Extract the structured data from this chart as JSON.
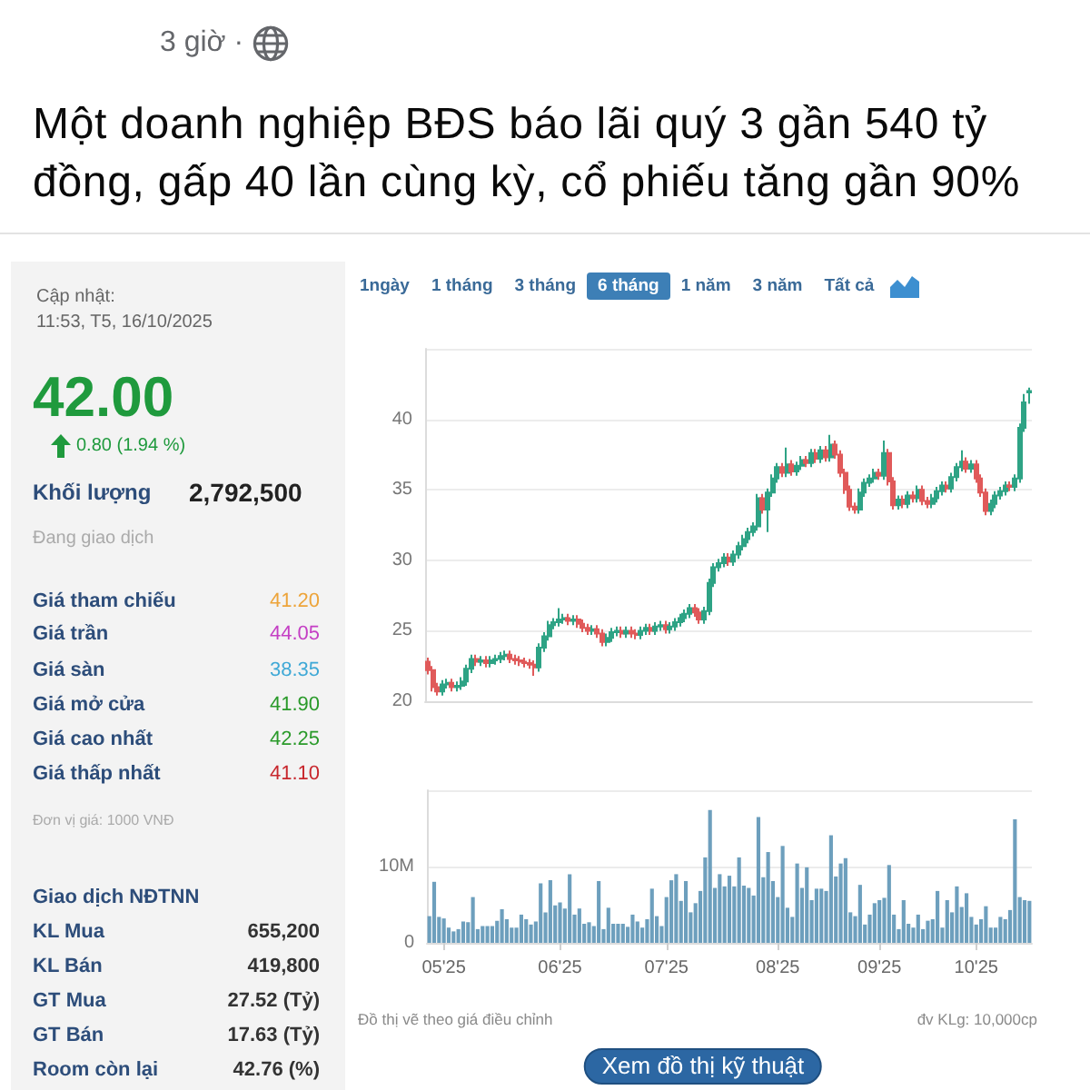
{
  "chart_data": [
    {
      "type": "other",
      "title": "Một doanh nghiệp BĐS báo lãi quý 3 gần 540 tỷ đồng, gấp 40 lần cùng kỳ, cổ phiếu tăng gần 90%",
      "annotations": [
        "3 giờ ·"
      ]
    },
    {
      "type": "other",
      "annotations": [
        "Cập nhật:",
        "11:53, T5, 16/10/2025",
        "42.00",
        "0.80 (1.94 %)",
        "Khối lượng",
        "2,792,500",
        "Đang giao dịch",
        "Giá tham chiếu",
        "41.20",
        "Giá trần",
        "44.05",
        "Giá sàn",
        "38.35",
        "Giá mở cửa",
        "41.90",
        "Giá cao nhất",
        "42.25",
        "Giá thấp nhất",
        "41.10",
        "Đơn vị giá: 1000 VNĐ",
        "Giao dịch NĐTNN",
        "KL Mua",
        "655,200",
        "KL Bán",
        "419,800",
        "GT Mua",
        "27.52 (Tỷ)",
        "GT Bán",
        "17.63 (Tỷ)",
        "Room còn lại",
        "42.76 (%)"
      ]
    },
    {
      "type": "candlestick",
      "annotations": [
        "1ngày",
        "1 tháng",
        "3 tháng",
        "6 tháng",
        "1 năm",
        "3 năm",
        "Tất cả"
      ],
      "categories": [
        null,
        null,
        null,
        null,
        null,
        null,
        null,
        null,
        null,
        null,
        null,
        null,
        null,
        null,
        null,
        null,
        null,
        null,
        null,
        null,
        null,
        null,
        null,
        null,
        null,
        null,
        null,
        null,
        null,
        null,
        null,
        null,
        null,
        null,
        null,
        null,
        null,
        null,
        null,
        null,
        null,
        null,
        null,
        null,
        null,
        null,
        null,
        null,
        null,
        null,
        null,
        null,
        null,
        null,
        null,
        null,
        null,
        null,
        null,
        null,
        null,
        null,
        null,
        null,
        null,
        null,
        null,
        null,
        null,
        null,
        null,
        null,
        null,
        null,
        null,
        null,
        null,
        null,
        null,
        null,
        null,
        null,
        null,
        null,
        null,
        null,
        null,
        null,
        null,
        null,
        null,
        null,
        null,
        null,
        null,
        null,
        null,
        null,
        null,
        null,
        null,
        null,
        null,
        null,
        null,
        null,
        null,
        null,
        null,
        null,
        null,
        null,
        null,
        null,
        null,
        null,
        null,
        null,
        null,
        null,
        null,
        null,
        null,
        null,
        null
      ],
      "ohlc": [
        [
          22.8,
          23.1,
          21.9,
          22.2
        ],
        [
          22.2,
          22.5,
          20.7,
          21.0
        ],
        [
          21.0,
          21.3,
          20.4,
          20.7
        ],
        [
          20.7,
          21.5,
          20.4,
          21.2
        ],
        [
          21.2,
          21.6,
          20.9,
          21.3
        ],
        [
          21.3,
          21.6,
          20.7,
          21.0
        ],
        [
          21.0,
          21.4,
          20.7,
          21.1
        ],
        [
          21.1,
          21.7,
          20.8,
          21.4
        ],
        [
          21.4,
          22.6,
          21.1,
          22.3
        ],
        [
          22.3,
          23.3,
          22.0,
          23.0
        ],
        [
          23.0,
          23.3,
          22.5,
          22.8
        ],
        [
          22.8,
          23.2,
          22.5,
          22.9
        ],
        [
          22.9,
          23.2,
          22.4,
          22.7
        ],
        [
          22.7,
          23.2,
          22.4,
          22.9
        ],
        [
          22.9,
          23.3,
          22.6,
          23.0
        ],
        [
          23.0,
          23.5,
          22.7,
          23.2
        ],
        [
          23.2,
          23.6,
          22.9,
          23.3
        ],
        [
          23.3,
          23.6,
          22.7,
          23.0
        ],
        [
          23.0,
          23.3,
          22.6,
          22.9
        ],
        [
          22.9,
          23.2,
          22.5,
          22.8
        ],
        [
          22.8,
          23.1,
          22.4,
          22.7
        ],
        [
          22.7,
          23.0,
          22.3,
          22.6
        ],
        [
          22.6,
          22.9,
          21.8,
          22.4
        ],
        [
          22.4,
          24.1,
          22.1,
          23.8
        ],
        [
          23.8,
          24.9,
          23.5,
          24.6
        ],
        [
          24.6,
          25.7,
          24.3,
          25.4
        ],
        [
          25.4,
          25.9,
          25.1,
          25.6
        ],
        [
          25.6,
          26.6,
          25.3,
          25.8
        ],
        [
          25.8,
          26.2,
          25.5,
          25.9
        ],
        [
          25.9,
          26.2,
          25.4,
          25.7
        ],
        [
          25.7,
          26.1,
          25.4,
          25.8
        ],
        [
          25.8,
          26.1,
          25.2,
          25.5
        ],
        [
          25.5,
          25.8,
          24.9,
          25.2
        ],
        [
          25.2,
          25.5,
          24.7,
          25.0
        ],
        [
          25.0,
          25.4,
          24.7,
          25.1
        ],
        [
          25.1,
          25.4,
          24.5,
          24.8
        ],
        [
          24.8,
          25.1,
          23.9,
          24.2
        ],
        [
          24.2,
          24.8,
          23.9,
          24.5
        ],
        [
          24.5,
          25.2,
          24.2,
          24.9
        ],
        [
          24.9,
          25.3,
          24.6,
          25.0
        ],
        [
          25.0,
          25.3,
          24.5,
          24.8
        ],
        [
          24.8,
          25.3,
          24.5,
          25.0
        ],
        [
          25.0,
          25.3,
          24.5,
          24.8
        ],
        [
          24.8,
          25.1,
          24.4,
          24.7
        ],
        [
          24.7,
          25.3,
          24.4,
          25.0
        ],
        [
          25.0,
          25.5,
          24.7,
          25.2
        ],
        [
          25.2,
          25.5,
          24.7,
          25.0
        ],
        [
          25.0,
          25.6,
          24.7,
          25.3
        ],
        [
          25.3,
          25.7,
          25.0,
          25.4
        ],
        [
          25.4,
          25.7,
          24.8,
          25.1
        ],
        [
          25.1,
          25.6,
          24.8,
          25.3
        ],
        [
          25.3,
          25.9,
          25.0,
          25.6
        ],
        [
          25.6,
          26.2,
          25.3,
          25.9
        ],
        [
          25.9,
          26.5,
          25.6,
          26.2
        ],
        [
          26.2,
          26.9,
          25.9,
          26.6
        ],
        [
          26.6,
          26.9,
          26.0,
          26.3
        ],
        [
          26.3,
          26.6,
          25.5,
          25.8
        ],
        [
          25.8,
          26.7,
          25.5,
          26.4
        ],
        [
          26.4,
          28.7,
          26.1,
          28.4
        ],
        [
          28.4,
          29.8,
          28.1,
          29.5
        ],
        [
          29.5,
          30.1,
          29.2,
          29.8
        ],
        [
          29.8,
          30.5,
          29.5,
          30.2
        ],
        [
          30.2,
          30.5,
          29.6,
          29.9
        ],
        [
          29.9,
          30.7,
          29.6,
          30.4
        ],
        [
          30.4,
          31.3,
          30.1,
          31.0
        ],
        [
          31.0,
          31.8,
          30.7,
          31.5
        ],
        [
          31.5,
          32.3,
          31.2,
          32.0
        ],
        [
          32.0,
          32.7,
          31.7,
          32.4
        ],
        [
          32.4,
          34.7,
          32.1,
          34.4
        ],
        [
          34.4,
          34.7,
          33.3,
          33.6
        ],
        [
          33.6,
          35.1,
          32.0,
          34.8
        ],
        [
          34.8,
          36.1,
          34.5,
          35.8
        ],
        [
          35.8,
          36.9,
          35.5,
          36.6
        ],
        [
          36.6,
          36.9,
          35.9,
          36.2
        ],
        [
          36.2,
          38.0,
          35.9,
          36.8
        ],
        [
          36.8,
          37.1,
          36.0,
          36.3
        ],
        [
          36.3,
          37.0,
          36.0,
          36.7
        ],
        [
          36.7,
          37.4,
          36.4,
          37.1
        ],
        [
          37.1,
          37.4,
          36.6,
          36.9
        ],
        [
          36.9,
          37.9,
          36.6,
          37.6
        ],
        [
          37.6,
          37.9,
          36.9,
          37.2
        ],
        [
          37.2,
          38.1,
          36.9,
          37.8
        ],
        [
          37.8,
          38.1,
          37.0,
          37.3
        ],
        [
          37.3,
          38.9,
          37.0,
          38.2
        ],
        [
          38.2,
          38.5,
          37.2,
          37.5
        ],
        [
          37.5,
          37.8,
          35.9,
          36.2
        ],
        [
          36.2,
          36.5,
          34.7,
          35.0
        ],
        [
          35.0,
          35.3,
          33.5,
          33.8
        ],
        [
          33.8,
          34.1,
          33.3,
          33.6
        ],
        [
          33.6,
          35.1,
          33.3,
          34.8
        ],
        [
          34.8,
          35.8,
          34.5,
          35.5
        ],
        [
          35.5,
          36.1,
          35.2,
          35.8
        ],
        [
          35.8,
          36.5,
          35.5,
          36.2
        ],
        [
          36.2,
          36.5,
          35.7,
          36.0
        ],
        [
          36.0,
          38.5,
          35.7,
          37.6
        ],
        [
          37.6,
          37.9,
          35.3,
          35.6
        ],
        [
          35.6,
          35.9,
          33.6,
          33.9
        ],
        [
          33.9,
          34.6,
          33.6,
          34.3
        ],
        [
          34.3,
          34.6,
          33.7,
          34.0
        ],
        [
          34.0,
          34.9,
          33.7,
          34.6
        ],
        [
          34.6,
          34.9,
          34.1,
          34.4
        ],
        [
          34.4,
          35.3,
          34.1,
          35.0
        ],
        [
          35.0,
          35.3,
          33.9,
          34.2
        ],
        [
          34.2,
          34.5,
          33.7,
          34.0
        ],
        [
          34.0,
          34.7,
          33.7,
          34.4
        ],
        [
          34.4,
          35.2,
          34.1,
          34.9
        ],
        [
          34.9,
          35.6,
          34.6,
          35.3
        ],
        [
          35.3,
          35.6,
          34.8,
          35.1
        ],
        [
          35.1,
          36.2,
          34.8,
          35.9
        ],
        [
          35.9,
          36.9,
          35.6,
          36.6
        ],
        [
          36.6,
          37.8,
          36.3,
          37.0
        ],
        [
          37.0,
          37.3,
          36.2,
          36.5
        ],
        [
          36.5,
          37.1,
          36.2,
          36.8
        ],
        [
          36.8,
          37.1,
          35.5,
          35.8
        ],
        [
          35.8,
          36.1,
          34.5,
          34.8
        ],
        [
          34.8,
          35.1,
          33.2,
          33.5
        ],
        [
          33.5,
          34.3,
          33.2,
          34.0
        ],
        [
          34.0,
          34.9,
          33.7,
          34.6
        ],
        [
          34.6,
          35.2,
          34.3,
          34.9
        ],
        [
          34.9,
          35.6,
          34.6,
          35.3
        ],
        [
          35.3,
          35.6,
          34.9,
          35.2
        ],
        [
          35.2,
          36.1,
          34.9,
          35.8
        ],
        [
          35.8,
          39.7,
          35.5,
          39.4
        ],
        [
          39.4,
          41.8,
          39.1,
          41.2
        ],
        [
          41.9,
          42.25,
          41.1,
          42.0
        ]
      ],
      "colors": [
        "#e05a5a",
        "#e05a5a",
        "#e05a5a",
        "#2ea385",
        "#2ea385",
        "#e05a5a",
        "#2ea385",
        "#2ea385",
        "#2ea385",
        "#2ea385",
        "#e05a5a",
        "#2ea385",
        "#e05a5a",
        "#2ea385",
        "#2ea385",
        "#2ea385",
        "#2ea385",
        "#e05a5a",
        "#e05a5a",
        "#e05a5a",
        "#e05a5a",
        "#e05a5a",
        "#e05a5a",
        "#2ea385",
        "#2ea385",
        "#2ea385",
        "#2ea385",
        "#2ea385",
        "#2ea385",
        "#e05a5a",
        "#2ea385",
        "#e05a5a",
        "#e05a5a",
        "#e05a5a",
        "#2ea385",
        "#e05a5a",
        "#e05a5a",
        "#2ea385",
        "#2ea385",
        "#2ea385",
        "#e05a5a",
        "#2ea385",
        "#e05a5a",
        "#e05a5a",
        "#2ea385",
        "#2ea385",
        "#e05a5a",
        "#2ea385",
        "#2ea385",
        "#e05a5a",
        "#2ea385",
        "#2ea385",
        "#2ea385",
        "#2ea385",
        "#2ea385",
        "#e05a5a",
        "#e05a5a",
        "#2ea385",
        "#2ea385",
        "#2ea385",
        "#2ea385",
        "#2ea385",
        "#e05a5a",
        "#2ea385",
        "#2ea385",
        "#2ea385",
        "#2ea385",
        "#2ea385",
        "#2ea385",
        "#e05a5a",
        "#2ea385",
        "#2ea385",
        "#2ea385",
        "#e05a5a",
        "#2ea385",
        "#e05a5a",
        "#2ea385",
        "#2ea385",
        "#e05a5a",
        "#2ea385",
        "#e05a5a",
        "#2ea385",
        "#e05a5a",
        "#2ea385",
        "#e05a5a",
        "#e05a5a",
        "#e05a5a",
        "#e05a5a",
        "#e05a5a",
        "#2ea385",
        "#2ea385",
        "#2ea385",
        "#2ea385",
        "#e05a5a",
        "#2ea385",
        "#e05a5a",
        "#e05a5a",
        "#2ea385",
        "#e05a5a",
        "#2ea385",
        "#e05a5a",
        "#2ea385",
        "#e05a5a",
        "#e05a5a",
        "#2ea385",
        "#2ea385",
        "#2ea385",
        "#e05a5a",
        "#2ea385",
        "#2ea385",
        "#2ea385",
        "#e05a5a",
        "#2ea385",
        "#e05a5a",
        "#e05a5a",
        "#e05a5a",
        "#2ea385",
        "#2ea385",
        "#2ea385",
        "#2ea385",
        "#e05a5a",
        "#2ea385",
        "#2ea385",
        "#2ea385",
        "#2ea385"
      ],
      "ylim": [
        20,
        45
      ],
      "yticks": [
        20,
        25,
        30,
        35,
        40,
        {
          "value": 45,
          "label": null
        }
      ],
      "grid": "y"
    },
    {
      "type": "bar",
      "annotations": [
        "Đồ thị vẽ theo giá điều chỉnh",
        "đv KLg: 10,000cp",
        "Xem đồ thị kỹ thuật"
      ],
      "categories": [
        null,
        null,
        null,
        "05'25",
        null,
        null,
        null,
        null,
        null,
        null,
        null,
        null,
        null,
        null,
        null,
        null,
        null,
        null,
        null,
        null,
        null,
        null,
        null,
        null,
        null,
        null,
        null,
        "06'25",
        null,
        null,
        null,
        null,
        null,
        null,
        null,
        null,
        null,
        null,
        null,
        null,
        null,
        null,
        null,
        null,
        null,
        null,
        null,
        null,
        null,
        "07'25",
        null,
        null,
        null,
        null,
        null,
        null,
        null,
        null,
        null,
        null,
        null,
        null,
        null,
        null,
        null,
        null,
        null,
        null,
        null,
        null,
        null,
        null,
        "08'25",
        null,
        null,
        null,
        null,
        null,
        null,
        null,
        null,
        null,
        null,
        null,
        null,
        null,
        null,
        null,
        null,
        null,
        null,
        null,
        null,
        "09'25",
        null,
        null,
        null,
        null,
        null,
        null,
        null,
        null,
        null,
        null,
        null,
        null,
        null,
        null,
        null,
        null,
        null,
        null,
        null,
        "10'25",
        null,
        null,
        null,
        null,
        null,
        null,
        null,
        null,
        null,
        null,
        null
      ],
      "values": [
        3.5,
        8.0,
        3.4,
        3.2,
        2.0,
        1.5,
        1.8,
        2.8,
        2.7,
        6.0,
        1.8,
        2.2,
        2.2,
        2.2,
        2.9,
        4.4,
        3.1,
        2.0,
        2.0,
        3.7,
        3.1,
        2.4,
        2.8,
        7.8,
        4.0,
        8.2,
        4.9,
        5.3,
        4.5,
        9.0,
        3.7,
        4.5,
        2.5,
        2.7,
        2.2,
        8.1,
        1.8,
        4.6,
        2.5,
        2.5,
        2.5,
        2.1,
        3.7,
        2.8,
        2.0,
        3.1,
        7.1,
        3.5,
        2.2,
        6.0,
        8.2,
        9.0,
        5.5,
        8.1,
        4.0,
        5.2,
        6.8,
        11.2,
        17.4,
        7.2,
        9.0,
        7.4,
        8.8,
        7.4,
        11.2,
        7.5,
        7.2,
        6.2,
        16.5,
        8.6,
        11.9,
        8.1,
        6.0,
        12.7,
        4.6,
        3.4,
        10.4,
        7.2,
        9.9,
        5.6,
        7.1,
        7.1,
        6.8,
        14.1,
        8.7,
        10.4,
        11.1,
        4.0,
        3.5,
        7.6,
        2.4,
        3.7,
        5.2,
        5.6,
        5.9,
        10.2,
        3.7,
        1.8,
        5.6,
        2.5,
        2.0,
        3.7,
        1.8,
        2.9,
        3.1,
        6.8,
        2.0,
        5.6,
        4.0,
        7.4,
        4.7,
        6.5,
        3.4,
        2.4,
        3.1,
        4.8,
        2.0,
        2.0,
        3.4,
        3.1,
        4.3,
        16.2,
        6.0,
        5.6,
        5.5
      ],
      "color": "#6d9fbd",
      "ylim": [
        0,
        20
      ],
      "yticks": [
        0,
        {
          "value": 10,
          "label": "10M"
        },
        {
          "value": 20,
          "label": null
        }
      ],
      "grid": "y"
    }
  ]
}
